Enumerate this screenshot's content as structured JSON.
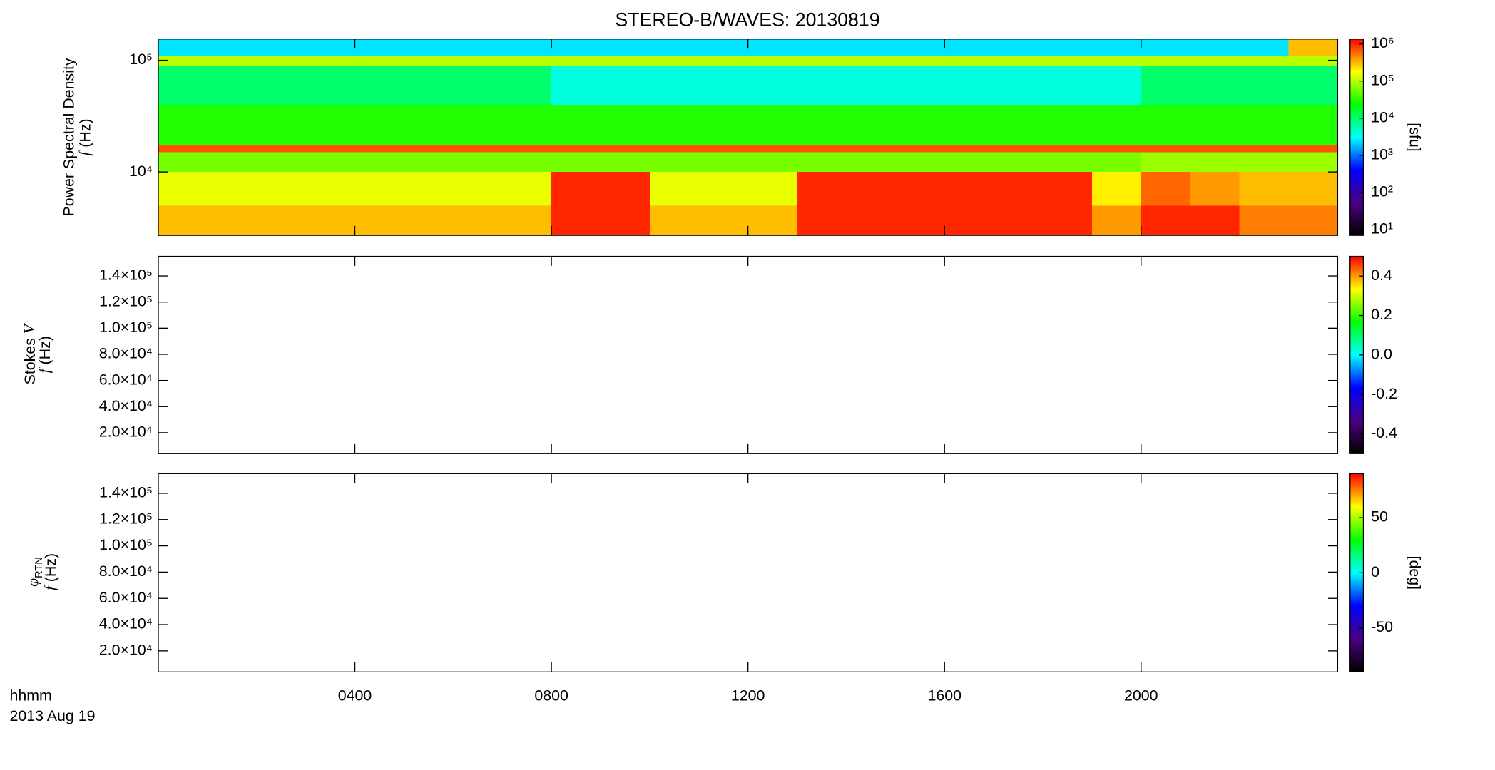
{
  "title": "STEREO-B/WAVES: 20130819",
  "xlabel": "hhmm",
  "date_label": "2013 Aug 19",
  "xlim": [
    0,
    24
  ],
  "xticks": [
    {
      "value": 4,
      "label": "0400"
    },
    {
      "value": 8,
      "label": "0800"
    },
    {
      "value": 12,
      "label": "1200"
    },
    {
      "value": 16,
      "label": "1600"
    },
    {
      "value": 20,
      "label": "2000"
    }
  ],
  "colormap": [
    "#000000",
    "#4b0082",
    "#0000ff",
    "#00ffff",
    "#00ff00",
    "#ffff00",
    "#ff0000"
  ],
  "chart_data": [
    {
      "type": "heatmap",
      "ylabel": "Power Spectral Density",
      "ylabel_var": "f",
      "ylabel_unit": "(Hz)",
      "yscale": "log",
      "ylim": [
        2700,
        155000
      ],
      "yticks": [
        {
          "value": 10000,
          "label": "10⁴"
        },
        {
          "value": 100000,
          "label": "10⁵"
        }
      ],
      "x": [
        0,
        1,
        2,
        3,
        4,
        5,
        6,
        7,
        8,
        9,
        10,
        11,
        12,
        13,
        14,
        15,
        16,
        17,
        18,
        19,
        20,
        21,
        22,
        23,
        24
      ],
      "y": [
        2700,
        5000,
        10000,
        15000,
        17500,
        40000,
        90000,
        110000,
        155000
      ],
      "values": [
        [
          300000,
          300000,
          300000,
          300000,
          300000,
          300000,
          300000,
          300000,
          1000000,
          1000000,
          300000,
          300000,
          300000,
          1000000,
          1000000,
          1000000,
          1000000,
          1000000,
          1000000,
          400000,
          1000000,
          1000000,
          500000,
          500000
        ],
        [
          150000,
          150000,
          150000,
          150000,
          150000,
          150000,
          150000,
          150000,
          1000000,
          1000000,
          150000,
          150000,
          150000,
          1000000,
          1000000,
          1000000,
          1000000,
          1000000,
          1000000,
          200000,
          600000,
          400000,
          300000,
          300000
        ],
        [
          60000,
          60000,
          60000,
          60000,
          60000,
          60000,
          60000,
          60000,
          60000,
          60000,
          60000,
          60000,
          60000,
          60000,
          60000,
          60000,
          60000,
          60000,
          60000,
          60000,
          80000,
          80000,
          80000,
          80000
        ],
        [
          700000,
          700000,
          700000,
          700000,
          700000,
          700000,
          700000,
          700000,
          700000,
          700000,
          700000,
          700000,
          700000,
          700000,
          700000,
          700000,
          700000,
          700000,
          700000,
          700000,
          700000,
          700000,
          700000,
          700000
        ],
        [
          30000,
          30000,
          30000,
          30000,
          30000,
          30000,
          30000,
          30000,
          30000,
          30000,
          30000,
          30000,
          30000,
          30000,
          30000,
          30000,
          30000,
          30000,
          30000,
          30000,
          30000,
          30000,
          30000,
          30000
        ],
        [
          10000,
          10000,
          10000,
          10000,
          10000,
          10000,
          10000,
          10000,
          4000,
          4000,
          4000,
          4000,
          4000,
          4000,
          4000,
          4000,
          4000,
          4000,
          4000,
          4000,
          10000,
          10000,
          10000,
          10000
        ],
        [
          100000,
          100000,
          100000,
          100000,
          100000,
          100000,
          100000,
          100000,
          100000,
          100000,
          100000,
          100000,
          100000,
          100000,
          100000,
          100000,
          100000,
          100000,
          100000,
          100000,
          100000,
          100000,
          100000,
          100000
        ],
        [
          2500,
          2500,
          2500,
          2500,
          2500,
          2500,
          2500,
          2500,
          2500,
          2500,
          2500,
          2500,
          2500,
          2500,
          2500,
          2500,
          2500,
          2500,
          2500,
          2500,
          2500,
          2500,
          2500,
          300000
        ]
      ],
      "cscale": "log",
      "clim": [
        7,
        1350000
      ],
      "cticks": [
        {
          "value": 10,
          "label": "10¹"
        },
        {
          "value": 100,
          "label": "10²"
        },
        {
          "value": 1000,
          "label": "10³"
        },
        {
          "value": 10000,
          "label": "10⁴"
        },
        {
          "value": 100000,
          "label": "10⁵"
        },
        {
          "value": 1000000,
          "label": "10⁶"
        }
      ],
      "clabel": "[sfu]"
    },
    {
      "type": "heatmap",
      "ylabel": "Stokes",
      "ylabel_symbol": "V",
      "ylabel_var": "f",
      "ylabel_unit": "(Hz)",
      "yscale": "linear",
      "ylim": [
        4000,
        155000
      ],
      "yticks": [
        {
          "value": 20000,
          "label": "2.0×10⁴"
        },
        {
          "value": 40000,
          "label": "4.0×10⁴"
        },
        {
          "value": 60000,
          "label": "6.0×10⁴"
        },
        {
          "value": 80000,
          "label": "8.0×10⁴"
        },
        {
          "value": 100000,
          "label": "1.0×10⁵"
        },
        {
          "value": 120000,
          "label": "1.2×10⁵"
        },
        {
          "value": 140000,
          "label": "1.4×10⁵"
        }
      ],
      "cscale": "linear",
      "clim": [
        -0.5,
        0.5
      ],
      "cticks": [
        -0.4,
        -0.2,
        {
          "value": 0,
          "label": "0.0"
        },
        0.2,
        0.4
      ]
    },
    {
      "type": "heatmap",
      "ylabel_symbol": "φ",
      "ylabel_subscript": "RTN",
      "ylabel_var": "f",
      "ylabel_unit": "(Hz)",
      "yscale": "linear",
      "ylim": [
        4000,
        155000
      ],
      "yticks": [
        {
          "value": 20000,
          "label": "2.0×10⁴"
        },
        {
          "value": 40000,
          "label": "4.0×10⁴"
        },
        {
          "value": 60000,
          "label": "6.0×10⁴"
        },
        {
          "value": 80000,
          "label": "8.0×10⁴"
        },
        {
          "value": 100000,
          "label": "1.0×10⁵"
        },
        {
          "value": 120000,
          "label": "1.2×10⁵"
        },
        {
          "value": 140000,
          "label": "1.4×10⁵"
        }
      ],
      "cscale": "linear",
      "clim": [
        -90,
        90
      ],
      "cticks": [
        -50,
        0,
        50
      ],
      "clabel": "[deg]"
    }
  ]
}
